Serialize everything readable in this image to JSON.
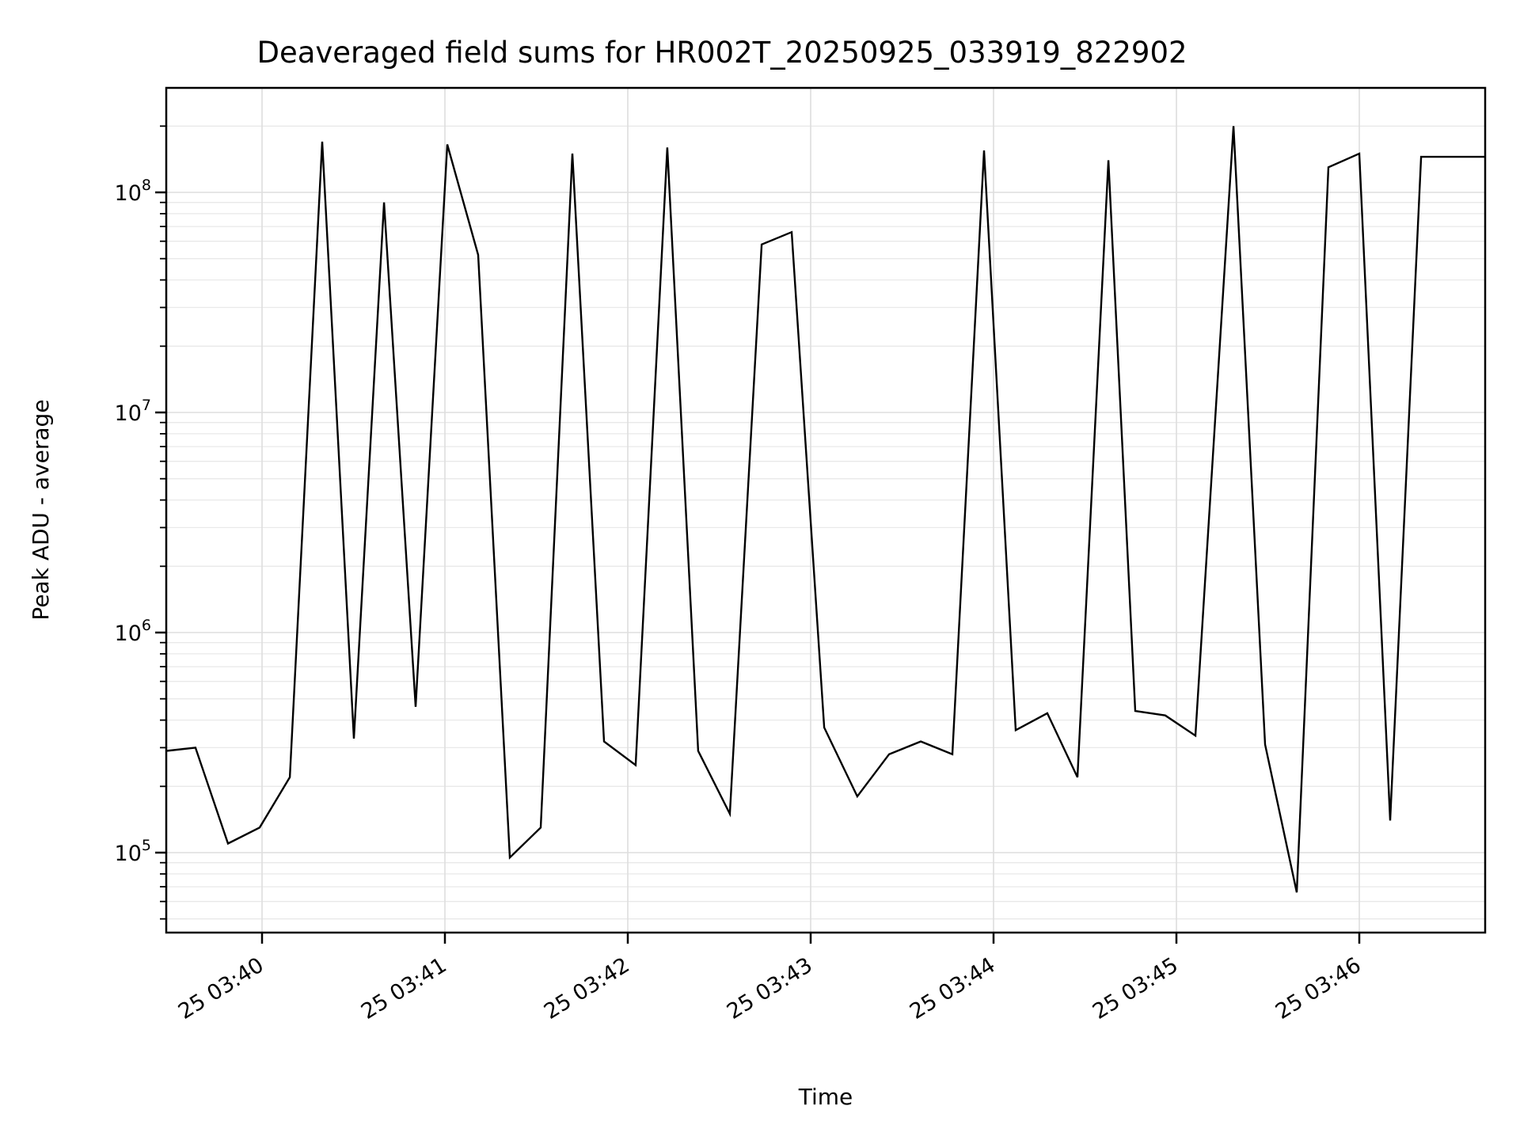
{
  "chart_data": {
    "type": "line",
    "title": "Deaveraged field sums for HR002T_20250925_033919_822902",
    "xlabel": "Time",
    "ylabel": "Peak ADU - average",
    "y_scale": "log",
    "ylim": [
      43300,
      298000000
    ],
    "xlim_time": [
      "25 03:39:29",
      "25 03:46:41"
    ],
    "grid": true,
    "legend": false,
    "line_color": "#000000",
    "grid_major_color": "#dedede",
    "grid_minor_color": "#e9e9e9",
    "x_ticks": [
      {
        "label": "25 03:40",
        "t_min": 0
      },
      {
        "label": "25 03:41",
        "t_min": 1
      },
      {
        "label": "25 03:42",
        "t_min": 2
      },
      {
        "label": "25 03:43",
        "t_min": 3
      },
      {
        "label": "25 03:44",
        "t_min": 4
      },
      {
        "label": "25 03:45",
        "t_min": 5
      },
      {
        "label": "25 03:46",
        "t_min": 6
      }
    ],
    "y_ticks": [
      {
        "label": "10^5",
        "value": 100000
      },
      {
        "label": "10^6",
        "value": 1000000
      },
      {
        "label": "10^7",
        "value": 10000000
      },
      {
        "label": "10^8",
        "value": 100000000
      }
    ],
    "points": [
      {
        "time": "03:39:29",
        "t_min": -0.524,
        "value": 290000
      },
      {
        "time": "03:39:38",
        "t_min": -0.364,
        "value": 300000
      },
      {
        "time": "03:39:49",
        "t_min": -0.186,
        "value": 110000
      },
      {
        "time": "03:39:59",
        "t_min": -0.013,
        "value": 130000
      },
      {
        "time": "03:40:09",
        "t_min": 0.152,
        "value": 220000
      },
      {
        "time": "03:40:20",
        "t_min": 0.329,
        "value": 170000000
      },
      {
        "time": "03:40:30",
        "t_min": 0.502,
        "value": 330000
      },
      {
        "time": "03:40:40",
        "t_min": 0.667,
        "value": 90000000
      },
      {
        "time": "03:40:50",
        "t_min": 0.84,
        "value": 460000
      },
      {
        "time": "03:41:01",
        "t_min": 1.013,
        "value": 165000000
      },
      {
        "time": "03:41:11",
        "t_min": 1.182,
        "value": 52000000
      },
      {
        "time": "03:41:21",
        "t_min": 1.355,
        "value": 95000
      },
      {
        "time": "03:41:31",
        "t_min": 1.524,
        "value": 130000
      },
      {
        "time": "03:41:42",
        "t_min": 1.697,
        "value": 150000000
      },
      {
        "time": "03:41:52",
        "t_min": 1.87,
        "value": 320000
      },
      {
        "time": "03:42:03",
        "t_min": 2.043,
        "value": 250000
      },
      {
        "time": "03:42:13",
        "t_min": 2.216,
        "value": 160000000
      },
      {
        "time": "03:42:23",
        "t_min": 2.385,
        "value": 290000
      },
      {
        "time": "03:42:33",
        "t_min": 2.558,
        "value": 150000
      },
      {
        "time": "03:42:44",
        "t_min": 2.732,
        "value": 58000000
      },
      {
        "time": "03:42:54",
        "t_min": 2.896,
        "value": 66000000
      },
      {
        "time": "03:43:04",
        "t_min": 3.074,
        "value": 370000
      },
      {
        "time": "03:43:15",
        "t_min": 3.255,
        "value": 180000
      },
      {
        "time": "03:43:26",
        "t_min": 3.429,
        "value": 280000
      },
      {
        "time": "03:43:36",
        "t_min": 3.602,
        "value": 320000
      },
      {
        "time": "03:43:47",
        "t_min": 3.775,
        "value": 280000
      },
      {
        "time": "03:43:57",
        "t_min": 3.948,
        "value": 155000000
      },
      {
        "time": "03:44:07",
        "t_min": 4.121,
        "value": 360000
      },
      {
        "time": "03:44:18",
        "t_min": 4.294,
        "value": 430000
      },
      {
        "time": "03:44:28",
        "t_min": 4.459,
        "value": 220000
      },
      {
        "time": "03:44:38",
        "t_min": 4.628,
        "value": 140000000
      },
      {
        "time": "03:44:47",
        "t_min": 4.775,
        "value": 440000
      },
      {
        "time": "03:44:56",
        "t_min": 4.939,
        "value": 420000
      },
      {
        "time": "03:45:06",
        "t_min": 5.104,
        "value": 340000
      },
      {
        "time": "03:45:19",
        "t_min": 5.312,
        "value": 200000000
      },
      {
        "time": "03:45:29",
        "t_min": 5.485,
        "value": 310000
      },
      {
        "time": "03:45:40",
        "t_min": 5.658,
        "value": 66000
      },
      {
        "time": "03:45:50",
        "t_min": 5.831,
        "value": 130000000
      },
      {
        "time": "03:46:00",
        "t_min": 6.0,
        "value": 150000000
      },
      {
        "time": "03:46:10",
        "t_min": 6.169,
        "value": 140000
      },
      {
        "time": "03:46:20",
        "t_min": 6.338,
        "value": 145000000
      },
      {
        "time": "03:46:31",
        "t_min": 6.511,
        "value": 145000000
      },
      {
        "time": "03:46:41",
        "t_min": 6.684,
        "value": 145000000
      }
    ]
  }
}
